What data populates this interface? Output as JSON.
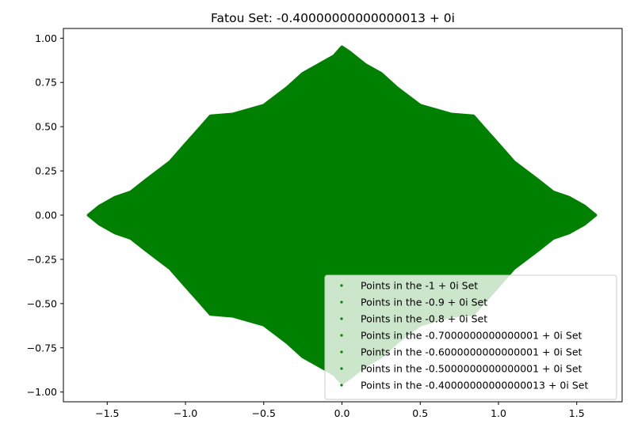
{
  "chart_data": {
    "type": "scatter",
    "title": "Fatou Set: -0.40000000000000013 + 0i",
    "xlabel": "",
    "ylabel": "",
    "xlim": [
      -1.78,
      1.79
    ],
    "ylim": [
      -1.055,
      1.055
    ],
    "grid": false,
    "legend_position": "lower right",
    "marker_color": "#008000",
    "x_ticks": [
      {
        "value": -1.5,
        "label": "−1.5"
      },
      {
        "value": -1.0,
        "label": "−1.0"
      },
      {
        "value": -0.5,
        "label": "−0.5"
      },
      {
        "value": 0.0,
        "label": "0.0"
      },
      {
        "value": 0.5,
        "label": "0.5"
      },
      {
        "value": 1.0,
        "label": "1.0"
      },
      {
        "value": 1.5,
        "label": "1.5"
      }
    ],
    "y_ticks": [
      {
        "value": 1.0,
        "label": "1.00"
      },
      {
        "value": 0.75,
        "label": "0.75"
      },
      {
        "value": 0.5,
        "label": "0.50"
      },
      {
        "value": 0.25,
        "label": "0.25"
      },
      {
        "value": 0.0,
        "label": "0.00"
      },
      {
        "value": -0.25,
        "label": "−0.25"
      },
      {
        "value": -0.5,
        "label": "−0.50"
      },
      {
        "value": -0.75,
        "label": "−0.75"
      },
      {
        "value": -1.0,
        "label": "−1.00"
      }
    ],
    "series": [
      {
        "name": "Points in the -1 + 0i Set"
      },
      {
        "name": "Points in the -0.9 + 0i Set"
      },
      {
        "name": "Points in the -0.8 + 0i Set"
      },
      {
        "name": "Points in the -0.7000000000000001 + 0i Set"
      },
      {
        "name": "Points in the -0.6000000000000001 + 0i Set"
      },
      {
        "name": "Points in the -0.5000000000000001 + 0i Set"
      },
      {
        "name": "Points in the -0.40000000000000013 + 0i Set"
      }
    ],
    "outline_upper": [
      [
        -1.62,
        0.0
      ],
      [
        -1.55,
        0.05
      ],
      [
        -1.45,
        0.1
      ],
      [
        -1.35,
        0.13
      ],
      [
        -1.25,
        0.2
      ],
      [
        -1.1,
        0.3
      ],
      [
        -1.0,
        0.4
      ],
      [
        -0.9,
        0.5
      ],
      [
        -0.84,
        0.56
      ],
      [
        -0.7,
        0.57
      ],
      [
        -0.58,
        0.6
      ],
      [
        -0.5,
        0.62
      ],
      [
        -0.35,
        0.72
      ],
      [
        -0.25,
        0.8
      ],
      [
        -0.15,
        0.85
      ],
      [
        -0.05,
        0.9
      ],
      [
        0.0,
        0.95
      ],
      [
        0.05,
        0.92
      ],
      [
        0.15,
        0.85
      ],
      [
        0.25,
        0.8
      ],
      [
        0.35,
        0.72
      ],
      [
        0.5,
        0.62
      ],
      [
        0.58,
        0.6
      ],
      [
        0.7,
        0.57
      ],
      [
        0.84,
        0.56
      ],
      [
        0.9,
        0.5
      ],
      [
        1.0,
        0.4
      ],
      [
        1.1,
        0.3
      ],
      [
        1.25,
        0.2
      ],
      [
        1.35,
        0.13
      ],
      [
        1.45,
        0.1
      ],
      [
        1.55,
        0.05
      ],
      [
        1.62,
        0.0
      ]
    ]
  }
}
